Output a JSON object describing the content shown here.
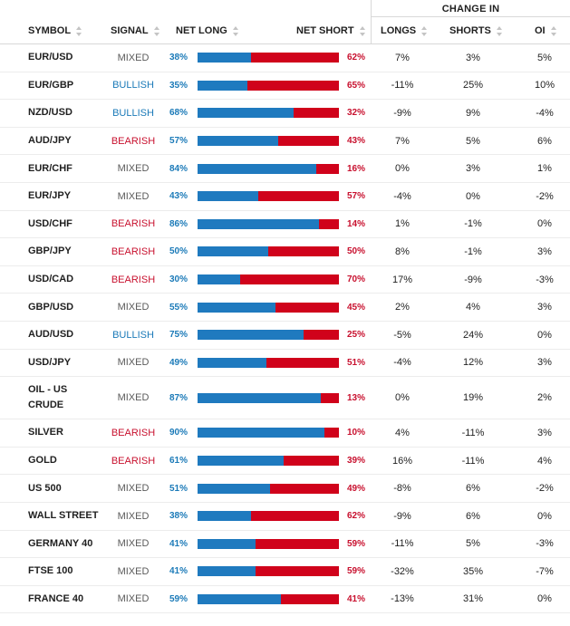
{
  "group_header": "CHANGE IN",
  "columns": {
    "symbol": "SYMBOL",
    "signal": "SIGNAL",
    "net_long": "NET LONG",
    "net_short": "NET SHORT",
    "longs": "LONGS",
    "shorts": "SHORTS",
    "oi": "OI"
  },
  "colors": {
    "long": "#1f7abf",
    "short": "#d0021b",
    "bullish": "#1b7ab8",
    "bearish": "#c8102e",
    "mixed": "#5a5a5a"
  },
  "icons": {
    "sort": "sort-arrows-icon"
  },
  "rows": [
    {
      "symbol": "EUR/USD",
      "signal": "MIXED",
      "net_long": "38%",
      "net_short": "62%",
      "long_pct": 38,
      "longs": "7%",
      "shorts": "3%",
      "oi": "5%"
    },
    {
      "symbol": "EUR/GBP",
      "signal": "BULLISH",
      "net_long": "35%",
      "net_short": "65%",
      "long_pct": 35,
      "longs": "-11%",
      "shorts": "25%",
      "oi": "10%"
    },
    {
      "symbol": "NZD/USD",
      "signal": "BULLISH",
      "net_long": "68%",
      "net_short": "32%",
      "long_pct": 68,
      "longs": "-9%",
      "shorts": "9%",
      "oi": "-4%"
    },
    {
      "symbol": "AUD/JPY",
      "signal": "BEARISH",
      "net_long": "57%",
      "net_short": "43%",
      "long_pct": 57,
      "longs": "7%",
      "shorts": "5%",
      "oi": "6%"
    },
    {
      "symbol": "EUR/CHF",
      "signal": "MIXED",
      "net_long": "84%",
      "net_short": "16%",
      "long_pct": 84,
      "longs": "0%",
      "shorts": "3%",
      "oi": "1%"
    },
    {
      "symbol": "EUR/JPY",
      "signal": "MIXED",
      "net_long": "43%",
      "net_short": "57%",
      "long_pct": 43,
      "longs": "-4%",
      "shorts": "0%",
      "oi": "-2%"
    },
    {
      "symbol": "USD/CHF",
      "signal": "BEARISH",
      "net_long": "86%",
      "net_short": "14%",
      "long_pct": 86,
      "longs": "1%",
      "shorts": "-1%",
      "oi": "0%"
    },
    {
      "symbol": "GBP/JPY",
      "signal": "BEARISH",
      "net_long": "50%",
      "net_short": "50%",
      "long_pct": 50,
      "longs": "8%",
      "shorts": "-1%",
      "oi": "3%"
    },
    {
      "symbol": "USD/CAD",
      "signal": "BEARISH",
      "net_long": "30%",
      "net_short": "70%",
      "long_pct": 30,
      "longs": "17%",
      "shorts": "-9%",
      "oi": "-3%"
    },
    {
      "symbol": "GBP/USD",
      "signal": "MIXED",
      "net_long": "55%",
      "net_short": "45%",
      "long_pct": 55,
      "longs": "2%",
      "shorts": "4%",
      "oi": "3%"
    },
    {
      "symbol": "AUD/USD",
      "signal": "BULLISH",
      "net_long": "75%",
      "net_short": "25%",
      "long_pct": 75,
      "longs": "-5%",
      "shorts": "24%",
      "oi": "0%"
    },
    {
      "symbol": "USD/JPY",
      "signal": "MIXED",
      "net_long": "49%",
      "net_short": "51%",
      "long_pct": 49,
      "longs": "-4%",
      "shorts": "12%",
      "oi": "3%"
    },
    {
      "symbol": "OIL - US CRUDE",
      "symbol_lines": [
        "OIL - US",
        "CRUDE"
      ],
      "signal": "MIXED",
      "net_long": "87%",
      "net_short": "13%",
      "long_pct": 87,
      "longs": "0%",
      "shorts": "19%",
      "oi": "2%"
    },
    {
      "symbol": "SILVER",
      "signal": "BEARISH",
      "net_long": "90%",
      "net_short": "10%",
      "long_pct": 90,
      "longs": "4%",
      "shorts": "-11%",
      "oi": "3%"
    },
    {
      "symbol": "GOLD",
      "signal": "BEARISH",
      "net_long": "61%",
      "net_short": "39%",
      "long_pct": 61,
      "longs": "16%",
      "shorts": "-11%",
      "oi": "4%"
    },
    {
      "symbol": "US 500",
      "signal": "MIXED",
      "net_long": "51%",
      "net_short": "49%",
      "long_pct": 51,
      "longs": "-8%",
      "shorts": "6%",
      "oi": "-2%"
    },
    {
      "symbol": "WALL STREET",
      "signal": "MIXED",
      "net_long": "38%",
      "net_short": "62%",
      "long_pct": 38,
      "longs": "-9%",
      "shorts": "6%",
      "oi": "0%"
    },
    {
      "symbol": "GERMANY 40",
      "signal": "MIXED",
      "net_long": "41%",
      "net_short": "59%",
      "long_pct": 41,
      "longs": "-11%",
      "shorts": "5%",
      "oi": "-3%"
    },
    {
      "symbol": "FTSE 100",
      "signal": "MIXED",
      "net_long": "41%",
      "net_short": "59%",
      "long_pct": 41,
      "longs": "-32%",
      "shorts": "35%",
      "oi": "-7%"
    },
    {
      "symbol": "FRANCE 40",
      "signal": "MIXED",
      "net_long": "59%",
      "net_short": "41%",
      "long_pct": 59,
      "longs": "-13%",
      "shorts": "31%",
      "oi": "0%"
    }
  ]
}
